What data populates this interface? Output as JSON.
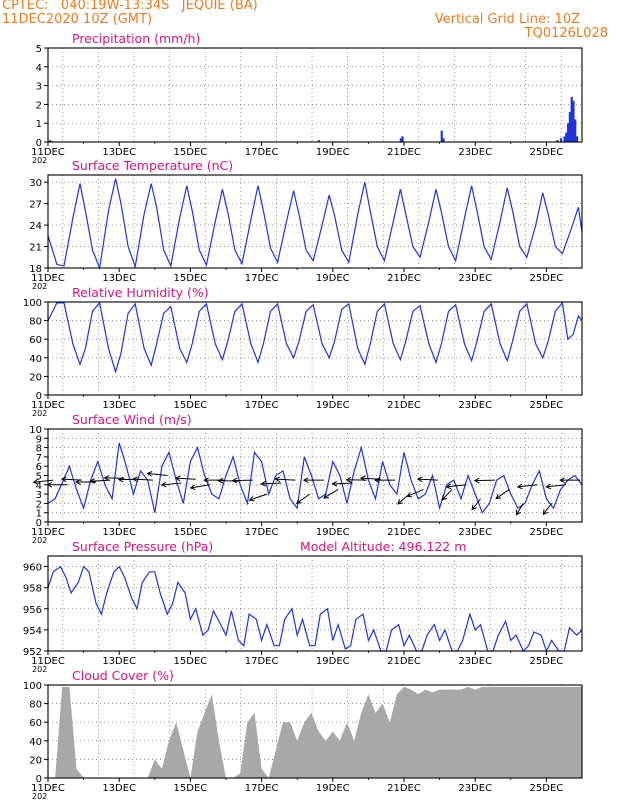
{
  "header": {
    "source_line": "CPTEC:   040:19W-13:34S   JEQUIE (BA)",
    "run_time": "11DEC2020 10Z (GMT)",
    "grid_note": "Vertical Grid Line: 10Z",
    "code": "TQ0126L028"
  },
  "colors": {
    "header": "#f07a1e",
    "panel_title": "#e0117f",
    "series": "#2233dd",
    "cloud_fill": "#a8a8a8",
    "wind_arrow": "#000000",
    "grid": "#555555"
  },
  "x_axis": {
    "start": "11DEC2020 00Z",
    "end": "26DEC2020 00Z",
    "tick_labels": [
      "11DEC",
      "13DEC",
      "15DEC",
      "17DEC",
      "19DEC",
      "21DEC",
      "23DEC",
      "25DEC"
    ],
    "tick_days": [
      11,
      13,
      15,
      17,
      19,
      21,
      23,
      25
    ],
    "year_fragment": "202"
  },
  "chart_data": [
    {
      "type": "bar",
      "title": "Precipitation (mm/h)",
      "ylim": [
        0,
        5
      ],
      "y_ticks": [
        0,
        1,
        2,
        3,
        4,
        5
      ],
      "grid": true,
      "x_day": [
        11.05,
        11.1,
        18.6,
        20.9,
        20.95,
        22.05,
        22.1,
        25.3,
        25.4,
        25.5,
        25.55,
        25.6,
        25.65,
        25.7,
        25.75,
        25.8,
        25.85
      ],
      "values": [
        0.1,
        0.05,
        0.1,
        0.2,
        0.3,
        0.6,
        0.2,
        0.1,
        0.2,
        0.3,
        0.5,
        1.0,
        1.6,
        2.4,
        2.2,
        1.2,
        0.3
      ]
    },
    {
      "type": "line",
      "title": "Surface Temperature (nC)",
      "ylim": [
        18,
        31
      ],
      "y_ticks": [
        18,
        21,
        24,
        27,
        30
      ],
      "grid": true,
      "x_day": [
        11.0,
        11.25,
        11.45,
        11.7,
        11.9,
        12.05,
        12.25,
        12.45,
        12.7,
        12.9,
        13.05,
        13.25,
        13.45,
        13.7,
        13.9,
        14.05,
        14.25,
        14.45,
        14.7,
        14.9,
        15.05,
        15.25,
        15.45,
        15.7,
        15.9,
        16.05,
        16.25,
        16.45,
        16.7,
        16.9,
        17.05,
        17.25,
        17.45,
        17.7,
        17.9,
        18.05,
        18.25,
        18.45,
        18.7,
        18.9,
        19.05,
        19.25,
        19.45,
        19.7,
        19.9,
        20.05,
        20.25,
        20.45,
        20.7,
        20.9,
        21.05,
        21.25,
        21.45,
        21.7,
        21.9,
        22.05,
        22.25,
        22.45,
        22.7,
        22.9,
        23.05,
        23.25,
        23.45,
        23.7,
        23.9,
        24.05,
        24.25,
        24.45,
        24.7,
        24.9,
        25.05,
        25.25,
        25.45,
        25.7,
        25.9,
        26.0
      ],
      "values": [
        22.5,
        18.5,
        18.3,
        25.0,
        29.8,
        26.0,
        20.5,
        18.0,
        26.0,
        30.5,
        27.0,
        21.0,
        18.2,
        25.5,
        29.8,
        26.5,
        20.5,
        18.3,
        25.0,
        29.5,
        26.0,
        20.5,
        18.4,
        24.5,
        29.0,
        25.8,
        20.5,
        18.6,
        24.8,
        29.5,
        26.0,
        20.8,
        18.8,
        24.5,
        28.8,
        25.5,
        20.5,
        19.0,
        24.0,
        28.2,
        25.3,
        20.5,
        18.8,
        25.5,
        30.0,
        26.0,
        21.0,
        19.0,
        24.5,
        29.0,
        25.5,
        21.0,
        19.5,
        24.5,
        29.0,
        25.8,
        21.0,
        19.0,
        25.0,
        29.5,
        26.0,
        21.0,
        19.2,
        24.5,
        29.2,
        26.0,
        21.0,
        19.5,
        24.0,
        28.5,
        25.5,
        21.0,
        20.0,
        23.5,
        26.5,
        23.0
      ]
    },
    {
      "type": "line",
      "title": "Relative Humidity (%)",
      "ylim": [
        0,
        100
      ],
      "y_ticks": [
        0,
        20,
        40,
        60,
        80,
        100
      ],
      "grid": true,
      "x_day": [
        11.0,
        11.25,
        11.45,
        11.7,
        11.9,
        12.05,
        12.25,
        12.45,
        12.7,
        12.9,
        13.05,
        13.25,
        13.45,
        13.7,
        13.9,
        14.05,
        14.25,
        14.45,
        14.7,
        14.9,
        15.05,
        15.25,
        15.45,
        15.7,
        15.9,
        16.05,
        16.25,
        16.45,
        16.7,
        16.9,
        17.05,
        17.25,
        17.45,
        17.7,
        17.9,
        18.05,
        18.25,
        18.45,
        18.7,
        18.9,
        19.05,
        19.25,
        19.45,
        19.7,
        19.9,
        20.05,
        20.25,
        20.45,
        20.7,
        20.9,
        21.05,
        21.25,
        21.45,
        21.7,
        21.9,
        22.05,
        22.25,
        22.45,
        22.7,
        22.9,
        23.05,
        23.25,
        23.45,
        23.7,
        23.9,
        24.05,
        24.25,
        24.45,
        24.7,
        24.9,
        25.05,
        25.25,
        25.45,
        25.6,
        25.75,
        25.9,
        26.0
      ],
      "values": [
        80,
        99,
        99,
        55,
        33,
        50,
        90,
        99,
        50,
        25,
        45,
        88,
        98,
        50,
        32,
        55,
        88,
        95,
        50,
        35,
        55,
        90,
        98,
        55,
        38,
        58,
        90,
        98,
        55,
        35,
        55,
        90,
        98,
        55,
        40,
        58,
        90,
        97,
        55,
        40,
        58,
        92,
        98,
        50,
        33,
        55,
        90,
        98,
        55,
        38,
        58,
        90,
        96,
        55,
        35,
        55,
        90,
        97,
        55,
        37,
        58,
        90,
        98,
        55,
        37,
        58,
        90,
        98,
        55,
        40,
        58,
        90,
        99,
        60,
        65,
        85,
        80
      ]
    },
    {
      "type": "line",
      "title": "Surface Wind (m/s)",
      "ylim": [
        0,
        10
      ],
      "y_ticks": [
        0,
        1,
        2,
        3,
        4,
        5,
        6,
        7,
        8,
        9,
        10
      ],
      "grid": true,
      "x_day": [
        11.0,
        11.2,
        11.4,
        11.6,
        11.8,
        12.0,
        12.2,
        12.4,
        12.6,
        12.8,
        13.0,
        13.2,
        13.4,
        13.6,
        13.8,
        14.0,
        14.2,
        14.4,
        14.6,
        14.8,
        15.0,
        15.2,
        15.4,
        15.6,
        15.8,
        16.0,
        16.2,
        16.4,
        16.6,
        16.8,
        17.0,
        17.2,
        17.4,
        17.6,
        17.8,
        18.0,
        18.2,
        18.4,
        18.6,
        18.8,
        19.0,
        19.2,
        19.4,
        19.6,
        19.8,
        20.0,
        20.2,
        20.4,
        20.6,
        20.8,
        21.0,
        21.2,
        21.4,
        21.6,
        21.8,
        22.0,
        22.2,
        22.4,
        22.6,
        22.8,
        23.0,
        23.2,
        23.4,
        23.6,
        23.8,
        24.0,
        24.2,
        24.4,
        24.6,
        24.8,
        25.0,
        25.2,
        25.4,
        25.6,
        25.8,
        26.0
      ],
      "values": [
        2.0,
        2.5,
        4.2,
        6.0,
        3.5,
        1.5,
        4.5,
        6.5,
        4.0,
        2.5,
        8.5,
        6.0,
        3.0,
        5.5,
        4.5,
        1.0,
        6.0,
        7.5,
        4.5,
        2.0,
        6.5,
        8.0,
        5.0,
        3.0,
        2.5,
        5.0,
        7.0,
        4.0,
        2.0,
        7.5,
        6.5,
        3.0,
        5.0,
        5.5,
        2.5,
        1.5,
        7.0,
        5.0,
        2.5,
        3.0,
        6.5,
        5.0,
        2.0,
        5.5,
        8.0,
        4.5,
        2.5,
        6.5,
        4.0,
        3.0,
        7.5,
        4.5,
        2.5,
        3.0,
        5.0,
        1.5,
        4.0,
        4.5,
        2.5,
        5.0,
        3.0,
        1.0,
        2.0,
        4.5,
        5.0,
        3.0,
        1.5,
        2.0,
        4.0,
        5.5,
        2.5,
        1.5,
        3.5,
        4.5,
        5.0,
        4.0
      ],
      "wind_arrows": {
        "x_day": [
          11.15,
          11.55,
          11.95,
          12.35,
          12.75,
          13.15,
          13.55,
          13.95,
          14.35,
          14.75,
          15.15,
          15.55,
          15.95,
          16.35,
          16.75,
          17.15,
          17.55,
          17.95,
          18.35,
          18.75,
          19.15,
          19.55,
          19.95,
          20.35,
          20.75,
          21.15,
          21.55,
          21.95,
          22.35,
          22.75,
          23.15,
          23.55,
          23.95,
          24.35,
          24.75,
          25.15,
          25.55,
          25.95
        ],
        "speed": [
          4.5,
          4.0,
          4.5,
          4.3,
          4.5,
          4.7,
          4.6,
          4.5,
          5.0,
          4.2,
          4.6,
          4.0,
          4.5,
          4.4,
          4.5,
          3.0,
          4.2,
          4.5,
          3.0,
          4.5,
          3.5,
          4.2,
          4.5,
          4.6,
          4.5,
          3.0,
          3.5,
          4.5,
          3.5,
          4.0,
          2.5,
          4.5,
          3.5,
          2.0,
          4.0,
          2.0,
          4.0,
          4.5
        ],
        "dir_deg": [
          80,
          90,
          95,
          90,
          85,
          92,
          88,
          95,
          100,
          80,
          95,
          75,
          90,
          92,
          88,
          60,
          85,
          95,
          40,
          90,
          45,
          85,
          92,
          95,
          90,
          35,
          55,
          95,
          30,
          80,
          25,
          88,
          40,
          20,
          80,
          25,
          80,
          90
        ]
      }
    },
    {
      "type": "line",
      "title": "Surface Pressure (hPa)",
      "annotation": "Model Altitude: 496.122 m",
      "ylim": [
        952,
        961
      ],
      "y_ticks": [
        952,
        954,
        956,
        958,
        960
      ],
      "grid": true,
      "x_day": [
        11.0,
        11.15,
        11.35,
        11.5,
        11.65,
        11.85,
        12.0,
        12.15,
        12.35,
        12.5,
        12.65,
        12.85,
        13.0,
        13.15,
        13.35,
        13.5,
        13.65,
        13.85,
        14.0,
        14.15,
        14.35,
        14.5,
        14.65,
        14.85,
        15.0,
        15.15,
        15.35,
        15.5,
        15.65,
        15.85,
        16.0,
        16.15,
        16.35,
        16.5,
        16.65,
        16.85,
        17.0,
        17.15,
        17.35,
        17.5,
        17.65,
        17.85,
        18.0,
        18.15,
        18.35,
        18.5,
        18.65,
        18.85,
        19.0,
        19.15,
        19.35,
        19.5,
        19.65,
        19.85,
        20.0,
        20.15,
        20.35,
        20.5,
        20.65,
        20.85,
        21.0,
        21.15,
        21.35,
        21.5,
        21.65,
        21.85,
        22.0,
        22.15,
        22.35,
        22.5,
        22.65,
        22.85,
        23.0,
        23.15,
        23.35,
        23.5,
        23.65,
        23.85,
        24.0,
        24.15,
        24.35,
        24.5,
        24.65,
        24.85,
        25.0,
        25.15,
        25.35,
        25.5,
        25.65,
        25.85,
        26.0
      ],
      "values": [
        958.0,
        959.5,
        960.0,
        959.0,
        957.5,
        958.5,
        960.0,
        959.5,
        956.5,
        955.5,
        957.5,
        959.5,
        960.0,
        959.0,
        957.0,
        956.0,
        958.5,
        959.5,
        959.5,
        957.5,
        955.5,
        956.5,
        958.5,
        957.5,
        955.0,
        956.0,
        953.5,
        954.0,
        955.8,
        954.5,
        953.5,
        955.8,
        953.0,
        952.5,
        955.5,
        955.0,
        953.0,
        954.5,
        952.5,
        952.5,
        955.0,
        956.0,
        953.5,
        955.0,
        952.5,
        952.5,
        955.5,
        956.0,
        953.0,
        954.5,
        952.2,
        952.5,
        955.0,
        955.5,
        953.0,
        954.0,
        951.8,
        952.0,
        954.0,
        954.5,
        952.5,
        953.5,
        952.0,
        951.5,
        953.5,
        954.5,
        953.0,
        954.0,
        951.5,
        952.0,
        953.0,
        955.5,
        954.0,
        954.5,
        952.0,
        951.5,
        953.5,
        954.8,
        953.0,
        953.5,
        951.5,
        952.5,
        953.8,
        953.5,
        952.0,
        953.0,
        951.5,
        952.0,
        954.2,
        953.5,
        954.0
      ]
    },
    {
      "type": "area",
      "title": "Cloud Cover (%)",
      "ylim": [
        0,
        100
      ],
      "y_ticks": [
        0,
        20,
        40,
        60,
        80,
        100
      ],
      "grid": true,
      "x_day": [
        11.0,
        11.2,
        11.4,
        11.6,
        11.8,
        12.0,
        12.2,
        12.4,
        12.6,
        12.8,
        13.0,
        13.2,
        13.4,
        13.6,
        13.8,
        14.0,
        14.2,
        14.4,
        14.6,
        14.8,
        15.0,
        15.2,
        15.4,
        15.6,
        15.8,
        16.0,
        16.2,
        16.4,
        16.6,
        16.8,
        17.0,
        17.2,
        17.4,
        17.6,
        17.8,
        18.0,
        18.2,
        18.4,
        18.6,
        18.8,
        19.0,
        19.2,
        19.4,
        19.6,
        19.8,
        20.0,
        20.2,
        20.4,
        20.6,
        20.8,
        21.0,
        21.2,
        21.4,
        21.6,
        21.8,
        22.0,
        22.2,
        22.4,
        22.6,
        22.8,
        23.0,
        23.2,
        23.4,
        23.6,
        23.8,
        24.0,
        24.2,
        24.4,
        24.6,
        24.8,
        25.0,
        25.2,
        25.4,
        25.6,
        25.8,
        26.0
      ],
      "values": [
        0,
        0,
        98,
        98,
        10,
        0,
        0,
        0,
        0,
        0,
        0,
        0,
        0,
        0,
        0,
        20,
        10,
        40,
        60,
        30,
        0,
        50,
        70,
        90,
        40,
        0,
        0,
        5,
        60,
        70,
        10,
        0,
        30,
        60,
        60,
        40,
        60,
        70,
        50,
        40,
        50,
        40,
        60,
        40,
        70,
        90,
        70,
        80,
        60,
        90,
        98,
        95,
        90,
        95,
        92,
        95,
        95,
        95,
        95,
        98,
        95,
        98,
        98,
        98,
        98,
        98,
        98,
        98,
        98,
        98,
        98,
        98,
        98,
        98,
        98,
        98
      ]
    }
  ]
}
